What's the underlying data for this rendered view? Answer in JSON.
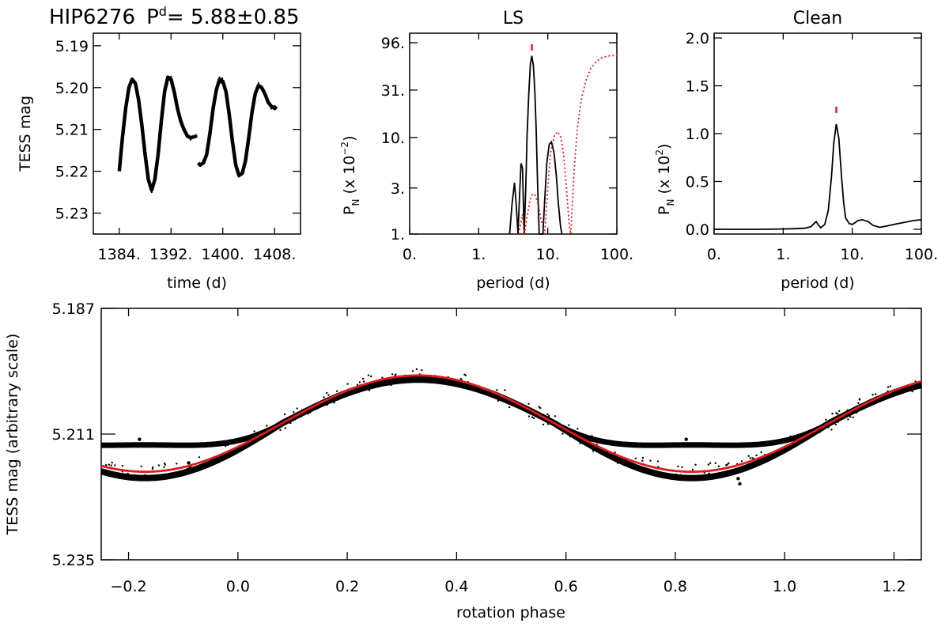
{
  "header": {
    "star": "HIP6276",
    "period_label": "P",
    "period_sup": "d",
    "period_value": "=  5.88±0.85"
  },
  "colors": {
    "data": "#000000",
    "fit": "#e31a1c",
    "window": "#e31a1c"
  },
  "chart_data": [
    {
      "id": "light-curve",
      "type": "scatter",
      "title": "",
      "xlabel": "time (d)",
      "ylabel": "TESS mag",
      "xlim": [
        1380,
        1412
      ],
      "ylim": [
        5.235,
        5.187
      ],
      "y_inverted": true,
      "xticks": [
        1384,
        1392,
        1400,
        1408
      ],
      "xtick_labels": [
        "1384.",
        "1392.",
        "1400.",
        "1408."
      ],
      "yticks": [
        5.19,
        5.2,
        5.21,
        5.22,
        5.23
      ],
      "ytick_labels": [
        "5.19",
        "5.20",
        "5.21",
        "5.22",
        "5.23"
      ],
      "segments": [
        {
          "x": [
            1384.0,
            1384.5,
            1385.0,
            1385.5,
            1386.0,
            1386.5,
            1387.0,
            1387.5,
            1388.0,
            1388.5,
            1389.0,
            1389.5,
            1390.0,
            1390.5,
            1391.0,
            1391.5,
            1392.0,
            1392.5,
            1393.0,
            1393.5,
            1394.0,
            1394.5,
            1395.0,
            1395.5,
            1396.0
          ],
          "y": [
            5.22,
            5.212,
            5.205,
            5.2,
            5.198,
            5.199,
            5.203,
            5.209,
            5.216,
            5.222,
            5.2245,
            5.222,
            5.216,
            5.208,
            5.201,
            5.1975,
            5.198,
            5.201,
            5.205,
            5.208,
            5.21,
            5.2115,
            5.212,
            5.2118,
            5.2115
          ]
        },
        {
          "x": [
            1396.2,
            1396.5,
            1397.0,
            1397.5,
            1398.0,
            1398.5,
            1399.0,
            1399.5,
            1400.0,
            1400.5,
            1401.0,
            1401.5,
            1402.0,
            1402.5,
            1403.0,
            1403.5,
            1404.0,
            1404.5,
            1405.0,
            1405.5,
            1406.0,
            1406.5,
            1407.0,
            1407.5,
            1408.0,
            1408.3
          ],
          "y": [
            5.218,
            5.2185,
            5.218,
            5.216,
            5.211,
            5.205,
            5.2005,
            5.198,
            5.1985,
            5.201,
            5.2065,
            5.213,
            5.2185,
            5.221,
            5.2205,
            5.2175,
            5.212,
            5.206,
            5.2015,
            5.1995,
            5.2,
            5.2015,
            5.2035,
            5.2045,
            5.205,
            5.2045
          ]
        }
      ]
    },
    {
      "id": "ls-periodogram",
      "type": "line",
      "title": "LS",
      "xlabel": "period (d)",
      "ylabel": "P",
      "ylabel_sub": "N",
      "ylabel_unit": " (x 10",
      "ylabel_exp": "−2",
      "x_scale": "log",
      "y_scale": "log",
      "xlim": [
        0.1,
        100
      ],
      "ylim": [
        1,
        96
      ],
      "xticks": [
        0.1,
        1,
        10,
        100
      ],
      "xtick_labels": [
        "0.",
        "1.",
        "10.",
        "100."
      ],
      "yticks": [
        1,
        3,
        10,
        31,
        96
      ],
      "ytick_labels": [
        "1.",
        "3.",
        "10.",
        "31.",
        "96."
      ],
      "peak_marker_x": 5.88,
      "series": [
        {
          "style": "solid",
          "x": [
            2.8,
            3.05,
            3.3,
            3.5,
            3.7,
            3.9,
            4.1,
            4.3,
            4.55,
            4.8,
            5.0,
            5.3,
            5.6,
            5.88,
            6.2,
            6.5,
            6.8,
            7.1,
            7.5,
            8.0,
            8.5,
            9.0,
            9.7,
            10.5,
            11.3,
            12.3,
            13.3,
            14.3,
            15.3,
            16.0
          ],
          "y": [
            1,
            2.1,
            3.4,
            2.0,
            1,
            2.5,
            5.4,
            4.8,
            1,
            3.0,
            10,
            28,
            58,
            70,
            55,
            30,
            12,
            3.5,
            1,
            1,
            1,
            2.2,
            5.5,
            8.5,
            9.0,
            7.0,
            4.0,
            2.0,
            1.2,
            1
          ]
        },
        {
          "style": "dotted",
          "x": [
            3.8,
            4.3,
            4.6,
            5.0,
            5.5,
            6.0,
            6.6,
            7.3,
            8.0,
            9.0,
            10.0,
            11.0,
            12.5,
            14.0,
            15.5,
            17.0,
            18.5,
            20.5,
            21.5,
            22.5,
            24.0,
            27.0,
            31.0,
            36.0,
            42.0,
            50.0,
            60.0,
            75.0,
            100.0
          ],
          "y": [
            1,
            1.6,
            1,
            1.5,
            2.2,
            2.6,
            2.5,
            2.0,
            1.4,
            1,
            3.0,
            7.0,
            10.5,
            11.5,
            10.0,
            6.5,
            3.2,
            1.2,
            1,
            1.8,
            4.5,
            13,
            26,
            40,
            52,
            61,
            67,
            70,
            71
          ]
        }
      ]
    },
    {
      "id": "clean-periodogram",
      "type": "line",
      "title": "Clean",
      "xlabel": "period (d)",
      "ylabel": "P",
      "ylabel_sub": "N",
      "ylabel_unit": " (x 10",
      "ylabel_exp": "2",
      "x_scale": "log",
      "xlim": [
        0.1,
        100
      ],
      "ylim": [
        -0.05,
        2.05
      ],
      "xticks": [
        0.1,
        1,
        10,
        100
      ],
      "xtick_labels": [
        "0.",
        "1.",
        "10.",
        "100."
      ],
      "yticks": [
        0.0,
        0.5,
        1.0,
        1.5,
        2.0
      ],
      "ytick_labels": [
        "0.0",
        "0.5",
        "1.0",
        "1.5",
        "2.0"
      ],
      "peak_marker_x": 5.88,
      "series": [
        {
          "style": "solid",
          "x": [
            0.1,
            0.5,
            1.0,
            1.5,
            2.0,
            2.5,
            2.8,
            3.0,
            3.2,
            3.5,
            4.0,
            4.5,
            5.0,
            5.4,
            5.88,
            6.4,
            7.0,
            7.5,
            8.0,
            9.0,
            10.0,
            11.0,
            12.0,
            14.0,
            17.0,
            20.0,
            25.0,
            30.0,
            40.0,
            55.0,
            75.0,
            100.0
          ],
          "y": [
            0.0,
            0.0,
            0.003,
            0.006,
            0.01,
            0.025,
            0.06,
            0.08,
            0.05,
            0.015,
            0.05,
            0.2,
            0.55,
            0.9,
            1.1,
            0.95,
            0.55,
            0.28,
            0.12,
            0.06,
            0.05,
            0.07,
            0.09,
            0.1,
            0.08,
            0.04,
            0.02,
            0.03,
            0.05,
            0.07,
            0.09,
            0.1
          ]
        }
      ]
    },
    {
      "id": "phased-curve",
      "type": "scatter",
      "title": "",
      "xlabel": "rotation phase",
      "ylabel": "TESS mag (arbitrary scale)",
      "xlim": [
        -0.25,
        1.25
      ],
      "ylim": [
        5.235,
        5.187
      ],
      "y_inverted": true,
      "xticks": [
        -0.2,
        0.0,
        0.2,
        0.4,
        0.6,
        0.8,
        1.0,
        1.2
      ],
      "xtick_labels": [
        "−0.2",
        "0.0",
        "0.2",
        "0.4",
        "0.6",
        "0.8",
        "1.0",
        "1.2"
      ],
      "yticks": [
        5.187,
        5.211,
        5.235
      ],
      "ytick_labels": [
        "5.187",
        "5.211",
        "5.235"
      ],
      "fit": {
        "mean": 5.209,
        "amplitude": 0.0092,
        "phase_min": 0.33
      },
      "data_band": {
        "upper_branch_offset": -0.0032,
        "lower_branch_offset": 0.0012,
        "peak_flatten": 0.0009
      },
      "outliers": [
        {
          "x": -0.18,
          "y": 5.212
        },
        {
          "x": -0.09,
          "y": 5.2165
        },
        {
          "x": -0.087,
          "y": 5.2175
        },
        {
          "x": 0.82,
          "y": 5.212
        },
        {
          "x": 0.915,
          "y": 5.2195
        },
        {
          "x": 0.918,
          "y": 5.2205
        }
      ]
    }
  ]
}
